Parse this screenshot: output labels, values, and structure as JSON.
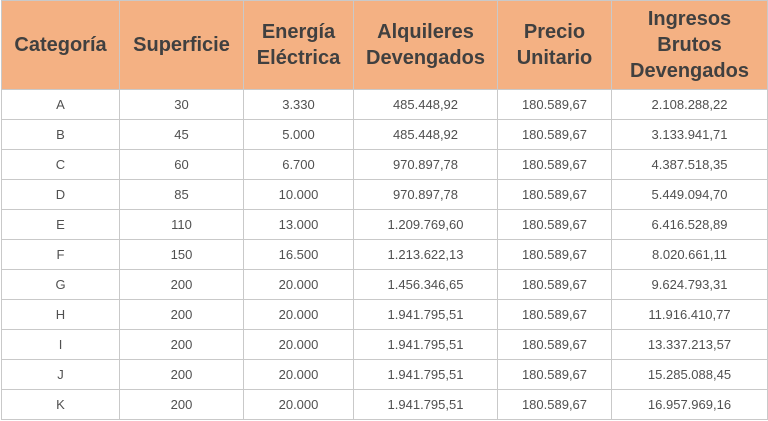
{
  "table": {
    "headers": [
      "Categoría",
      "Superficie",
      "Energía Eléctrica",
      "Alquileres Devengados",
      "Precio Unitario",
      "Ingresos Brutos Devengados"
    ],
    "rows": [
      [
        "A",
        "30",
        "3.330",
        "485.448,92",
        "180.589,67",
        "2.108.288,22"
      ],
      [
        "B",
        "45",
        "5.000",
        "485.448,92",
        "180.589,67",
        "3.133.941,71"
      ],
      [
        "C",
        "60",
        "6.700",
        "970.897,78",
        "180.589,67",
        "4.387.518,35"
      ],
      [
        "D",
        "85",
        "10.000",
        "970.897,78",
        "180.589,67",
        "5.449.094,70"
      ],
      [
        "E",
        "110",
        "13.000",
        "1.209.769,60",
        "180.589,67",
        "6.416.528,89"
      ],
      [
        "F",
        "150",
        "16.500",
        "1.213.622,13",
        "180.589,67",
        "8.020.661,11"
      ],
      [
        "G",
        "200",
        "20.000",
        "1.456.346,65",
        "180.589,67",
        "9.624.793,31"
      ],
      [
        "H",
        "200",
        "20.000",
        "1.941.795,51",
        "180.589,67",
        "11.916.410,77"
      ],
      [
        "I",
        "200",
        "20.000",
        "1.941.795,51",
        "180.589,67",
        "13.337.213,57"
      ],
      [
        "J",
        "200",
        "20.000",
        "1.941.795,51",
        "180.589,67",
        "15.285.088,45"
      ],
      [
        "K",
        "200",
        "20.000",
        "1.941.795,51",
        "180.589,67",
        "16.957.969,16"
      ]
    ]
  },
  "colors": {
    "header_background": "#f4b183",
    "header_text": "#404040",
    "cell_text": "#505050",
    "border": "#c9c9c9"
  }
}
